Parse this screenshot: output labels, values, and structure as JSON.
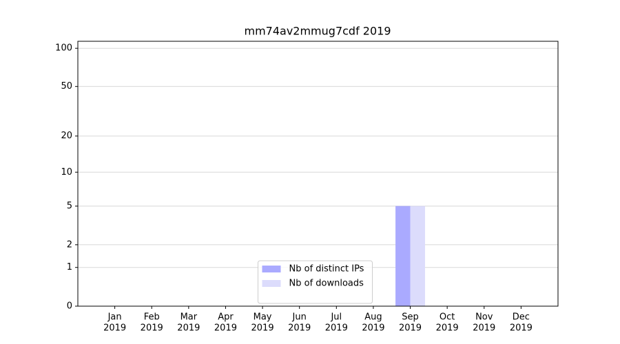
{
  "chart_data": {
    "type": "bar",
    "title": "mm74av2mmug7cdf 2019",
    "categories": [
      [
        "Jan",
        "2019"
      ],
      [
        "Feb",
        "2019"
      ],
      [
        "Mar",
        "2019"
      ],
      [
        "Apr",
        "2019"
      ],
      [
        "May",
        "2019"
      ],
      [
        "Jun",
        "2019"
      ],
      [
        "Jul",
        "2019"
      ],
      [
        "Aug",
        "2019"
      ],
      [
        "Sep",
        "2019"
      ],
      [
        "Oct",
        "2019"
      ],
      [
        "Nov",
        "2019"
      ],
      [
        "Dec",
        "2019"
      ]
    ],
    "series": [
      {
        "name": "Nb of distinct IPs",
        "color": "#aaaaff",
        "values": [
          0,
          0,
          0,
          0,
          0,
          0,
          0,
          0,
          5,
          0,
          0,
          0
        ]
      },
      {
        "name": "Nb of downloads",
        "color": "#dcdcfc",
        "values": [
          0,
          0,
          0,
          0,
          0,
          0,
          0,
          0,
          5,
          0,
          0,
          0
        ]
      }
    ],
    "yscale": "log1p",
    "ylim": [
      0,
      113.5
    ],
    "yticks": [
      0,
      1,
      2,
      5,
      10,
      20,
      50,
      100
    ],
    "grid": true,
    "legend": "lower center"
  }
}
